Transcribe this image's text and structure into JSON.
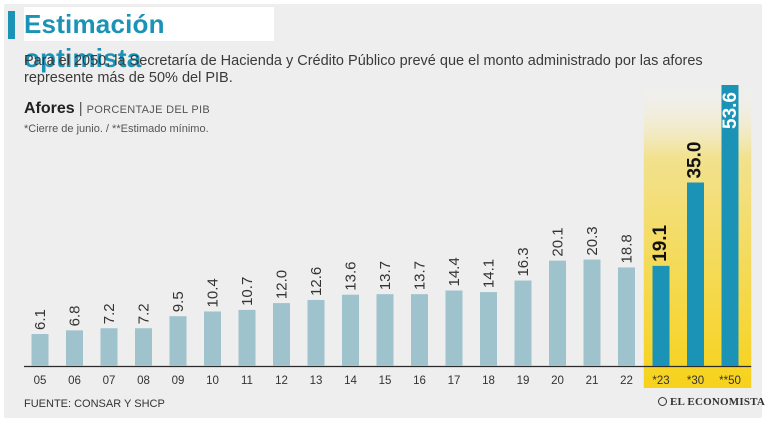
{
  "header": {
    "title": "Estimación optimista",
    "subtitle": "Para el 2050, la Secretaría de Hacienda y Crédito Público prevé que el monto administrado por las afores represente más de 50% del PIB.",
    "series_label": "Afores",
    "separator": "|",
    "unit_label": "PORCENTAJE DEL PIB",
    "note": "*Cierre de junio. / **Estimado mínimo."
  },
  "footer": {
    "source": "FUENTE: CONSAR Y SHCP",
    "logo_text": "EL ECONOMISTA"
  },
  "colors": {
    "title": "#1a93b6",
    "historical_bar": "#9fc3cd",
    "projected_bar": "#1a93b6",
    "highlight_bg": "#f7d21b"
  },
  "chart_data": {
    "type": "bar",
    "title": "Afores",
    "ylabel": "PORCENTAJE DEL PIB",
    "categories": [
      "05",
      "06",
      "07",
      "08",
      "09",
      "10",
      "11",
      "12",
      "13",
      "14",
      "15",
      "16",
      "17",
      "18",
      "19",
      "20",
      "21",
      "22",
      "*23",
      "*30",
      "**50"
    ],
    "values": [
      6.1,
      6.8,
      7.2,
      7.2,
      9.5,
      10.4,
      10.7,
      12.0,
      12.6,
      13.6,
      13.7,
      13.7,
      14.4,
      14.1,
      16.3,
      20.1,
      20.3,
      18.8,
      19.1,
      35.0,
      53.6
    ],
    "labels": [
      "6.1",
      "6.8",
      "7.2",
      "7.2",
      "9.5",
      "10.4",
      "10.7",
      "12.0",
      "12.6",
      "13.6",
      "13.7",
      "13.7",
      "14.4",
      "14.1",
      "16.3",
      "20.1",
      "20.3",
      "18.8",
      "19.1",
      "35.0",
      "53.6"
    ],
    "projected_from_index": 18,
    "ylim": [
      0,
      53.6
    ],
    "grid": false,
    "legend": "none"
  }
}
